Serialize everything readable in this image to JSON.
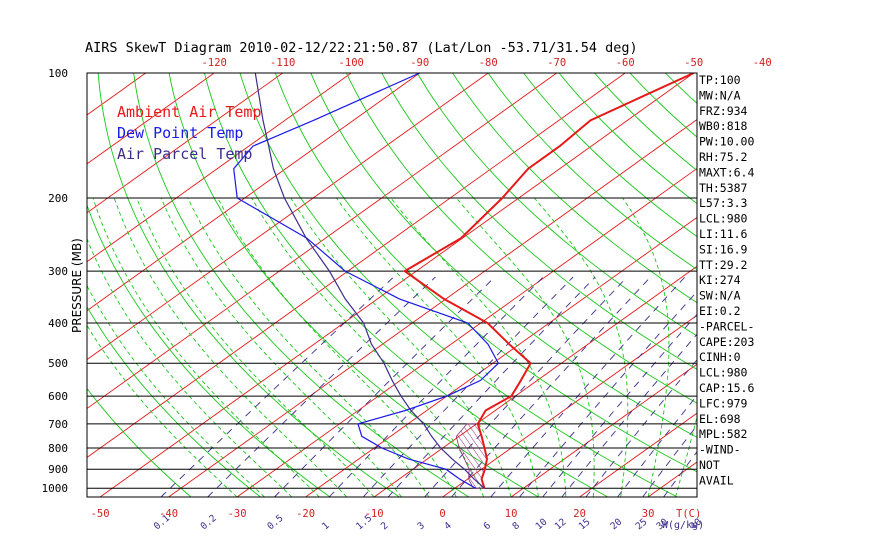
{
  "chart_data": {
    "type": "line",
    "title": "AIRS SkewT Diagram 2010-02-12/22:21:50.87 (Lat/Lon -53.71/31.54 deg)",
    "ylabel": "PRESSURE (MB)",
    "xlabel_temp_unit": "T(C)",
    "xlabel_mixing_unit": "W(g/kg)",
    "y_scale": "log",
    "ylim": [
      1050,
      100
    ],
    "xlim_bottom": [
      -50,
      40
    ],
    "pressure_ticks": [
      100,
      200,
      300,
      400,
      500,
      600,
      700,
      800,
      900,
      1000
    ],
    "pressure_tick_labels": [
      "100",
      "200",
      "300",
      "400",
      "500",
      "600",
      "700",
      "800",
      "900",
      "1000"
    ],
    "top_temp_ticks": [
      -120,
      -110,
      -100,
      -90,
      -80,
      -70,
      -60,
      -50,
      -40
    ],
    "top_temp_tick_labels": [
      "-120",
      "-110",
      "-100",
      "-90",
      "-80",
      "-70",
      "-60",
      "-50",
      "-40"
    ],
    "bottom_temp_ticks": [
      -50,
      -40,
      -30,
      -20,
      -10,
      0,
      10,
      20,
      30
    ],
    "bottom_temp_tick_labels": [
      "-50",
      "-40",
      "-30",
      "-20",
      "-10",
      "0",
      "10",
      "20",
      "30"
    ],
    "mixing_ratio_ticks": [
      0.1,
      0.2,
      0.5,
      1,
      1.5,
      2,
      3,
      4,
      6,
      8,
      10,
      12,
      15,
      20,
      25,
      30,
      40
    ],
    "mixing_ratio_tick_labels": [
      "0.1",
      "0.2",
      "0.5",
      "1",
      "1.5",
      "2",
      "3",
      "4",
      "6",
      "8",
      "10",
      "12",
      "15",
      "20",
      "25",
      "30",
      "40"
    ],
    "legend": [
      {
        "label": "Ambient Air Temp",
        "color": "#e61919"
      },
      {
        "label": "Dew Point Temp",
        "color": "#1a1ae6"
      },
      {
        "label": "Air Parcel Temp",
        "color": "#3c2d8c"
      }
    ],
    "legend_placement": "top-left",
    "series": [
      {
        "name": "Ambient Air Temp",
        "color": "#e61919",
        "points": [
          [
            1000,
            4.3
          ],
          [
            950,
            2.0
          ],
          [
            900,
            0.5
          ],
          [
            850,
            -1.3
          ],
          [
            800,
            -3.9
          ],
          [
            750,
            -6.7
          ],
          [
            700,
            -9.8
          ],
          [
            650,
            -11.4
          ],
          [
            600,
            -10.6
          ],
          [
            550,
            -12.4
          ],
          [
            500,
            -14.5
          ],
          [
            450,
            -21.5
          ],
          [
            400,
            -29.0
          ],
          [
            350,
            -40.3
          ],
          [
            300,
            -51.7
          ],
          [
            250,
            -50.2
          ],
          [
            200,
            -52.4
          ],
          [
            170,
            -54.6
          ],
          [
            150,
            -54.6
          ],
          [
            130,
            -55.4
          ],
          [
            100,
            -50.0
          ]
        ]
      },
      {
        "name": "Dew Point Temp",
        "color": "#1a1ae6",
        "points": [
          [
            1000,
            3.0
          ],
          [
            950,
            -1.2
          ],
          [
            900,
            -5.2
          ],
          [
            850,
            -12.8
          ],
          [
            800,
            -18.9
          ],
          [
            750,
            -24.2
          ],
          [
            700,
            -27.3
          ],
          [
            650,
            -23.1
          ],
          [
            600,
            -20.0
          ],
          [
            550,
            -18.3
          ],
          [
            500,
            -19.2
          ],
          [
            450,
            -24.6
          ],
          [
            400,
            -31.9
          ],
          [
            350,
            -46.8
          ],
          [
            300,
            -60.4
          ],
          [
            250,
            -72.7
          ],
          [
            200,
            -91.1
          ],
          [
            170,
            -97.6
          ],
          [
            150,
            -99.4
          ],
          [
            130,
            -95.8
          ],
          [
            100,
            -90.0
          ]
        ]
      },
      {
        "name": "Air Parcel Temp",
        "color": "#3c2d8c",
        "points": [
          [
            1000,
            4.3
          ],
          [
            950,
            0.9
          ],
          [
            900,
            -2.5
          ],
          [
            850,
            -6.4
          ],
          [
            800,
            -10.3
          ],
          [
            750,
            -14.0
          ],
          [
            700,
            -17.7
          ],
          [
            650,
            -22.3
          ],
          [
            600,
            -26.7
          ],
          [
            550,
            -31.2
          ],
          [
            500,
            -35.9
          ],
          [
            450,
            -41.6
          ],
          [
            400,
            -47.1
          ],
          [
            350,
            -54.7
          ],
          [
            300,
            -62.7
          ],
          [
            250,
            -72.8
          ],
          [
            200,
            -84.2
          ],
          [
            170,
            -91.8
          ],
          [
            150,
            -97.1
          ],
          [
            130,
            -103.2
          ],
          [
            100,
            -114.0
          ]
        ]
      }
    ],
    "indices": [
      "TP:100",
      "MW:N/A",
      "FRZ:934",
      "WB0:818",
      "PW:10.00",
      "RH:75.2",
      "MAXT:6.4",
      "TH:5387",
      "L57:3.3",
      "LCL:980",
      "LI:11.6",
      "SI:16.9",
      "TT:29.2",
      "KI:274",
      "SW:N/A",
      "EI:0.2",
      "-PARCEL-",
      "CAPE:203",
      "CINH:0",
      "LCL:980",
      "CAP:15.6",
      "LFC:979",
      "EL:698",
      "MPL:582",
      "-WIND-",
      "NOT",
      "AVAIL"
    ],
    "colors": {
      "background": "#ffffff",
      "frame": "#000000",
      "isotherm": "#e61919",
      "dry_adiabat": "#19c819",
      "moist_adiabat": "#19c819",
      "mixing_ratio": "#3c2d8c",
      "bottom_temp_labels": "#d21e1e",
      "mixing_ratio_labels": "#3c2d8c",
      "top_temp_labels": "#d21e1e",
      "title": "#000000",
      "cape_hatch": "#8c2d73"
    },
    "grid": true
  }
}
